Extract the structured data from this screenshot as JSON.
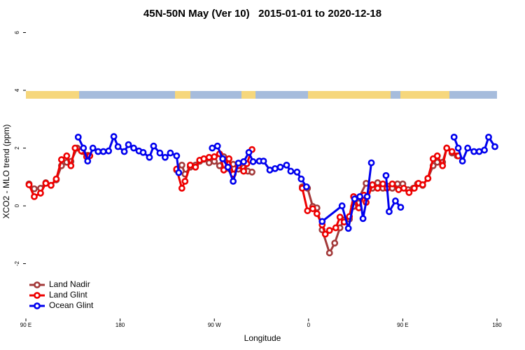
{
  "chart_data": {
    "type": "line",
    "title": "45N-50N May (Ver 10)   2015-01-01 to 2020-12-18",
    "xlabel": "Longitude",
    "ylabel": "XCO2 - MLO trend (ppm)",
    "xlim": [
      90,
      540
    ],
    "ylim": [
      -3.9,
      6.4
    ],
    "xticks": [
      {
        "value": 90,
        "label": "90 E"
      },
      180,
      {
        "value": 270,
        "label": "90 W"
      },
      {
        "value": 360,
        "label": "0"
      },
      {
        "value": 450,
        "label": "90 E"
      },
      {
        "value": 540,
        "label": "180"
      }
    ],
    "yticks": [
      -2,
      0,
      2,
      4,
      6
    ],
    "legend": "bottom-left",
    "series": [
      {
        "name": "Land Nadir",
        "color": "#a33a3a",
        "x": [
          93,
          98,
          104,
          109,
          114,
          119,
          124,
          129,
          133,
          139,
          144,
          149,
          190,
          234,
          239,
          242,
          247,
          252,
          256,
          260,
          265,
          270,
          275,
          279,
          284,
          288,
          293,
          298,
          302,
          306,
          330,
          354,
          359,
          364,
          368,
          373,
          380,
          385,
          390,
          394,
          399,
          403,
          408,
          415,
          421,
          426,
          431,
          436,
          440,
          445,
          450,
          455,
          460,
          464,
          469,
          474,
          479,
          483,
          488,
          492,
          497,
          502
        ],
        "values": [
          0.76,
          0.59,
          0.61,
          0.8,
          0.71,
          0.9,
          1.39,
          1.51,
          1.54,
          2.0,
          1.88,
          1.75,
          null,
          1.24,
          1.41,
          1.1,
          1.34,
          1.41,
          1.54,
          1.61,
          1.49,
          1.54,
          1.39,
          1.7,
          1.29,
          1.44,
          1.27,
          1.32,
          1.2,
          1.17,
          null,
          0.66,
          0.61,
          -0.02,
          -0.07,
          -0.83,
          -1.63,
          -1.29,
          -0.76,
          -0.49,
          -0.46,
          -0.02,
          0.27,
          0.78,
          0.61,
          0.8,
          0.61,
          0.68,
          0.61,
          0.76,
          0.76,
          0.56,
          0.61,
          0.76,
          0.71,
          0.95,
          1.39,
          1.51,
          1.51,
          2.0,
          1.83,
          1.73
        ]
      },
      {
        "name": "Land Glint",
        "color": "#ee0000",
        "x": [
          93,
          98,
          104,
          109,
          114,
          119,
          124,
          129,
          133,
          137,
          143,
          148,
          151,
          190,
          234,
          239,
          242,
          247,
          252,
          256,
          260,
          265,
          270,
          275,
          279,
          284,
          288,
          293,
          298,
          301,
          306,
          330,
          354,
          359,
          364,
          368,
          373,
          376,
          380,
          386,
          390,
          394,
          399,
          403,
          408,
          413,
          415,
          421,
          426,
          431,
          435,
          440,
          446,
          451,
          456,
          461,
          465,
          469,
          474,
          479,
          483,
          488,
          492,
          497,
          503
        ],
        "values": [
          0.73,
          0.32,
          0.44,
          0.78,
          0.71,
          0.93,
          1.6,
          1.73,
          1.39,
          2.0,
          1.9,
          1.7,
          1.73,
          null,
          1.27,
          0.61,
          0.85,
          1.41,
          1.34,
          1.58,
          1.63,
          1.68,
          1.7,
          1.8,
          1.24,
          1.63,
          1.1,
          1.39,
          1.2,
          1.46,
          1.95,
          null,
          0.61,
          -0.17,
          -0.1,
          -0.27,
          -0.66,
          -0.98,
          -0.85,
          -0.76,
          -0.39,
          -0.56,
          -0.37,
          0.32,
          -0.07,
          0.37,
          0.12,
          0.73,
          0.61,
          0.76,
          0.61,
          0.76,
          0.56,
          0.61,
          0.46,
          0.61,
          0.78,
          0.73,
          0.95,
          1.63,
          1.73,
          1.39,
          2.0,
          1.88,
          1.73
        ]
      },
      {
        "name": "Ocean Glint",
        "color": "#0000ee",
        "x": [
          140,
          145,
          149,
          154,
          159,
          164,
          169,
          174,
          178,
          184,
          188,
          193,
          198,
          202,
          208,
          212,
          218,
          223,
          228,
          234,
          236,
          250,
          268,
          273,
          278,
          283,
          288,
          293,
          298,
          303,
          307,
          313,
          317,
          323,
          328,
          333,
          339,
          343,
          349,
          353,
          358,
          365,
          373,
          392,
          398,
          404,
          409,
          412,
          416,
          420,
          427,
          434,
          437,
          443,
          448,
          470,
          499,
          503,
          507,
          512,
          518,
          523,
          528,
          532,
          538
        ],
        "values": [
          2.38,
          2.0,
          1.55,
          2.0,
          1.88,
          1.88,
          1.9,
          2.4,
          2.05,
          1.88,
          2.12,
          2.0,
          1.9,
          1.85,
          1.68,
          2.07,
          1.83,
          1.68,
          1.83,
          1.73,
          1.15,
          null,
          2.0,
          2.07,
          1.63,
          1.34,
          0.85,
          1.48,
          1.53,
          1.85,
          1.53,
          1.55,
          1.55,
          1.24,
          1.29,
          1.34,
          1.41,
          1.2,
          1.17,
          0.93,
          0.66,
          null,
          -0.54,
          0.0,
          -0.78,
          0.24,
          0.32,
          -0.44,
          0.32,
          1.49,
          null,
          1.05,
          -0.2,
          0.17,
          -0.05,
          null,
          2.38,
          2.0,
          1.55,
          2.0,
          1.88,
          1.88,
          1.93,
          2.38,
          2.05
        ]
      }
    ]
  }
}
